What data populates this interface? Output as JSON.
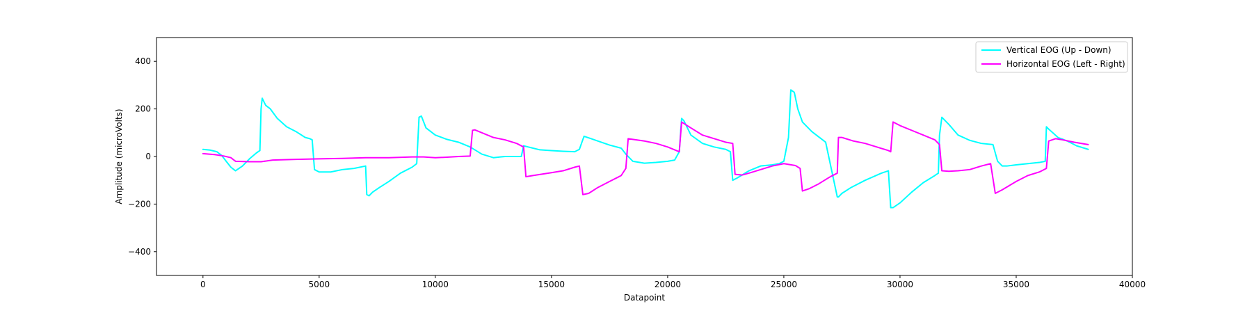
{
  "chart_data": {
    "type": "line",
    "title": "",
    "xlabel": "Datapoint",
    "ylabel": "Amplitude (microVolts)",
    "xlim": [
      -2000,
      40000
    ],
    "ylim": [
      -500,
      500
    ],
    "xticks": [
      0,
      5000,
      10000,
      15000,
      20000,
      25000,
      30000,
      35000,
      40000
    ],
    "xtick_labels": [
      "0",
      "5000",
      "10000",
      "15000",
      "20000",
      "25000",
      "30000",
      "35000",
      "40000"
    ],
    "yticks": [
      -400,
      -200,
      0,
      200,
      400
    ],
    "ytick_labels": [
      "−400",
      "−200",
      "0",
      "200",
      "400"
    ],
    "grid": false,
    "legend_position": "top-right",
    "series": [
      {
        "name": "Vertical EOG (Up - Down)",
        "color": "#00ffff",
        "x": [
          0,
          300,
          600,
          800,
          1000,
          1200,
          1400,
          1700,
          2000,
          2300,
          2450,
          2500,
          2550,
          2700,
          2900,
          3200,
          3600,
          4000,
          4400,
          4600,
          4700,
          4800,
          5000,
          5500,
          6000,
          6500,
          7000,
          7050,
          7150,
          7300,
          7600,
          8000,
          8500,
          9000,
          9200,
          9300,
          9400,
          9600,
          10000,
          10500,
          11000,
          11500,
          12000,
          12500,
          12800,
          13000,
          13500,
          13700,
          13800,
          14000,
          14500,
          15000,
          15500,
          16000,
          16200,
          16400,
          16700,
          17000,
          17500,
          18000,
          18200,
          18500,
          19000,
          19500,
          20000,
          20300,
          20500,
          20600,
          20700,
          21000,
          21500,
          22000,
          22500,
          22700,
          22800,
          23000,
          23500,
          24000,
          24500,
          24800,
          25000,
          25200,
          25300,
          25450,
          25600,
          25800,
          26200,
          26800,
          27300,
          27350,
          27500,
          27900,
          28500,
          29200,
          29500,
          29600,
          29700,
          30000,
          30500,
          31000,
          31500,
          31650,
          31700,
          31800,
          32100,
          32500,
          33000,
          33500,
          34000,
          34200,
          34400,
          34600,
          35000,
          35500,
          36000,
          36250,
          36300,
          36400,
          36800,
          37200,
          37600,
          38100
        ],
        "values": [
          30,
          27,
          20,
          5,
          -20,
          -45,
          -60,
          -40,
          -10,
          15,
          25,
          200,
          245,
          215,
          200,
          160,
          125,
          105,
          80,
          75,
          70,
          -55,
          -65,
          -65,
          -55,
          -50,
          -40,
          -160,
          -165,
          -150,
          -130,
          -105,
          -70,
          -45,
          -30,
          165,
          170,
          120,
          90,
          72,
          60,
          40,
          10,
          -5,
          -2,
          0,
          0,
          0,
          45,
          40,
          28,
          25,
          22,
          20,
          30,
          85,
          75,
          65,
          48,
          35,
          10,
          -20,
          -28,
          -25,
          -20,
          -15,
          20,
          160,
          150,
          90,
          55,
          40,
          30,
          20,
          -100,
          -90,
          -60,
          -40,
          -35,
          -30,
          -20,
          80,
          280,
          270,
          200,
          145,
          105,
          60,
          -170,
          -170,
          -155,
          -130,
          -100,
          -70,
          -60,
          -215,
          -215,
          -195,
          -150,
          -110,
          -80,
          -70,
          90,
          165,
          135,
          90,
          68,
          55,
          50,
          -20,
          -40,
          -40,
          -35,
          -30,
          -25,
          -20,
          125,
          115,
          80,
          65,
          45,
          30
        ]
      },
      {
        "name": "Horizontal EOG (Left - Right)",
        "color": "#ff00ff",
        "x": [
          0,
          500,
          900,
          1200,
          1400,
          2000,
          2500,
          3000,
          4000,
          5000,
          6000,
          7000,
          8000,
          9000,
          9500,
          10000,
          10500,
          11000,
          11500,
          11600,
          11700,
          12000,
          12500,
          13000,
          13500,
          13800,
          13900,
          14200,
          15000,
          15500,
          16000,
          16200,
          16350,
          16600,
          17000,
          17500,
          18000,
          18200,
          18300,
          18500,
          19000,
          19500,
          20000,
          20500,
          20600,
          21000,
          21500,
          22000,
          22500,
          22800,
          22900,
          23200,
          23500,
          24000,
          24500,
          25000,
          25500,
          25700,
          25800,
          26100,
          26500,
          27000,
          27300,
          27350,
          27500,
          28000,
          28500,
          29000,
          29500,
          29600,
          29700,
          30000,
          30500,
          31000,
          31500,
          31700,
          31800,
          32100,
          32500,
          33000,
          33500,
          33900,
          34100,
          34400,
          35000,
          35500,
          36000,
          36300,
          36400,
          36700,
          37000,
          37500,
          38100
        ],
        "values": [
          12,
          8,
          2,
          -5,
          -20,
          -22,
          -22,
          -15,
          -12,
          -10,
          -8,
          -5,
          -5,
          -2,
          -2,
          -5,
          -3,
          0,
          2,
          110,
          112,
          100,
          80,
          70,
          55,
          40,
          -85,
          -80,
          -68,
          -60,
          -45,
          -40,
          -160,
          -155,
          -130,
          -105,
          -80,
          -50,
          75,
          72,
          65,
          55,
          40,
          20,
          145,
          120,
          90,
          75,
          60,
          55,
          -75,
          -78,
          -70,
          -55,
          -40,
          -30,
          -38,
          -50,
          -145,
          -135,
          -115,
          -85,
          -70,
          80,
          80,
          65,
          55,
          40,
          25,
          20,
          145,
          130,
          110,
          90,
          70,
          50,
          -60,
          -62,
          -60,
          -55,
          -40,
          -30,
          -155,
          -140,
          -105,
          -80,
          -65,
          -50,
          65,
          75,
          70,
          60,
          50
        ]
      }
    ]
  }
}
